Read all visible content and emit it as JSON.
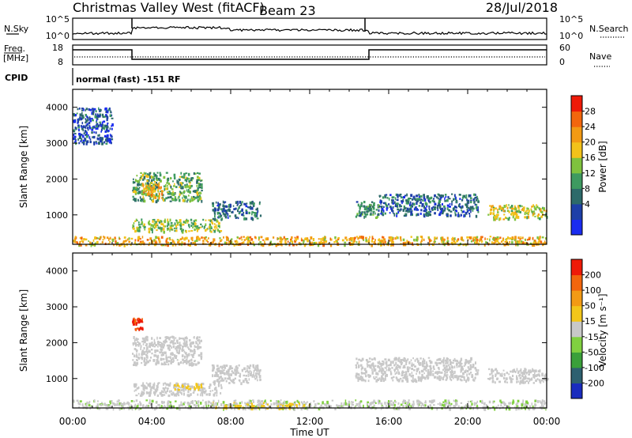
{
  "header": {
    "title": "Christmas Valley West (fitACF)",
    "beam": "Beam 23",
    "date": "28/Jul/2018",
    "cpid_label": "CPID",
    "cpid_value": "normal (fast) -151 RF",
    "nsky_label": "N.Sky",
    "nsearch_label": "N.Search",
    "freq_label_1": "Freq.",
    "freq_label_2": "[MHz]",
    "nave_label": "Nave",
    "noise_ticks": [
      "10^5",
      "10^0"
    ],
    "freq_ticks": [
      "18",
      "8"
    ],
    "nave_ticks": [
      "60",
      "0"
    ]
  },
  "axes": {
    "ylabel": "Slant Range [km]",
    "xlabel": "Time UT",
    "yticks": [
      "4000",
      "3000",
      "2000",
      "1000"
    ],
    "xticks": [
      "00:00",
      "04:00",
      "08:00",
      "12:00",
      "16:00",
      "20:00",
      "00:00"
    ]
  },
  "power_colorbar": {
    "label": "Power [dB]",
    "ticks": [
      "28",
      "24",
      "20",
      "16",
      "12",
      "8",
      "4"
    ],
    "colors": [
      "#1a2cf0",
      "#1e3fa8",
      "#2d6a6a",
      "#3e9a60",
      "#7fc23e",
      "#f2c21a",
      "#f29a14",
      "#f2660d",
      "#ee1a08"
    ]
  },
  "velocity_colorbar": {
    "label": "Velocity [m s⁻¹]",
    "ticks": [
      "200",
      "100",
      "50",
      "15",
      "-15",
      "-50",
      "-100",
      "-200"
    ],
    "colors": [
      "#1a2cbe",
      "#2e6070",
      "#3aa03a",
      "#80d040",
      "#c8c8c8",
      "#f2c61a",
      "#f29a14",
      "#f2660d",
      "#ee1a08"
    ]
  },
  "chart_data": [
    {
      "type": "heatmap",
      "name": "Power",
      "x_range_hours": [
        0,
        24
      ],
      "y_range_km": [
        180,
        4500
      ],
      "colorbar_range": [
        0,
        30
      ],
      "regions": [
        {
          "t": [
            0.0,
            24.0
          ],
          "r": [
            180,
            420
          ],
          "v": 20
        },
        {
          "t": [
            3.0,
            7.5
          ],
          "r": [
            550,
            900
          ],
          "v": 15
        },
        {
          "t": [
            3.0,
            6.5
          ],
          "r": [
            1400,
            2200
          ],
          "v": 13
        },
        {
          "t": [
            3.5,
            4.5
          ],
          "r": [
            1500,
            1900
          ],
          "v": 20
        },
        {
          "t": [
            7.0,
            9.5
          ],
          "r": [
            900,
            1400
          ],
          "v": 8
        },
        {
          "t": [
            14.3,
            15.5
          ],
          "r": [
            950,
            1400
          ],
          "v": 10
        },
        {
          "t": [
            15.5,
            20.5
          ],
          "r": [
            1000,
            1600
          ],
          "v": 7
        },
        {
          "t": [
            21.0,
            24.0
          ],
          "r": [
            900,
            1300
          ],
          "v": 17
        },
        {
          "t": [
            0.0,
            2.0
          ],
          "r": [
            3000,
            4000
          ],
          "v": 6
        }
      ]
    },
    {
      "type": "heatmap",
      "name": "Velocity",
      "x_range_hours": [
        0,
        24
      ],
      "y_range_km": [
        180,
        4500
      ],
      "colorbar_range": [
        -250,
        250
      ],
      "regions": [
        {
          "t": [
            0.0,
            24.0
          ],
          "r": [
            180,
            420
          ],
          "v": -20
        },
        {
          "t": [
            7.0,
            12.0
          ],
          "r": [
            180,
            350
          ],
          "v": 30
        },
        {
          "t": [
            3.0,
            7.5
          ],
          "r": [
            550,
            900
          ],
          "v": 0
        },
        {
          "t": [
            3.0,
            6.5
          ],
          "r": [
            1400,
            2200
          ],
          "v": 0
        },
        {
          "t": [
            5.0,
            6.5
          ],
          "r": [
            700,
            900
          ],
          "v": 30
        },
        {
          "t": [
            7.0,
            9.5
          ],
          "r": [
            900,
            1400
          ],
          "v": 0
        },
        {
          "t": [
            14.3,
            20.5
          ],
          "r": [
            950,
            1600
          ],
          "v": 0
        },
        {
          "t": [
            21.0,
            24.0
          ],
          "r": [
            900,
            1300
          ],
          "v": 0
        },
        {
          "t": [
            3.0,
            3.5
          ],
          "r": [
            2400,
            2700
          ],
          "v": 200
        }
      ]
    }
  ]
}
